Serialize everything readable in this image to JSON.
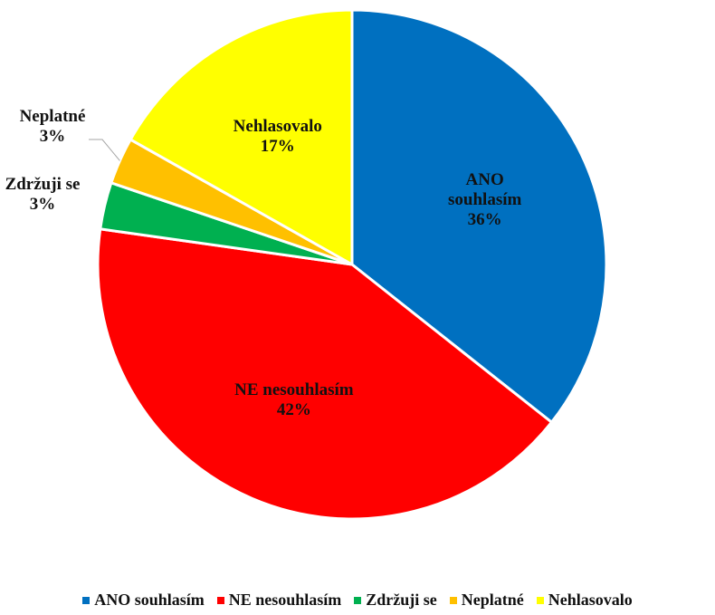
{
  "chart_data": {
    "type": "pie",
    "categories": [
      "ANO souhlasím",
      "NE nesouhlasím",
      "Zdržuji se",
      "Neplatné",
      "Nehlasovalo"
    ],
    "values": [
      36,
      42,
      3,
      3,
      17
    ],
    "value_labels": [
      "36%",
      "42%",
      "3%",
      "3%",
      "17%"
    ],
    "colors": [
      "#0070c0",
      "#ff0000",
      "#00b050",
      "#ffc000",
      "#ffff00"
    ],
    "legend": "bottom"
  }
}
